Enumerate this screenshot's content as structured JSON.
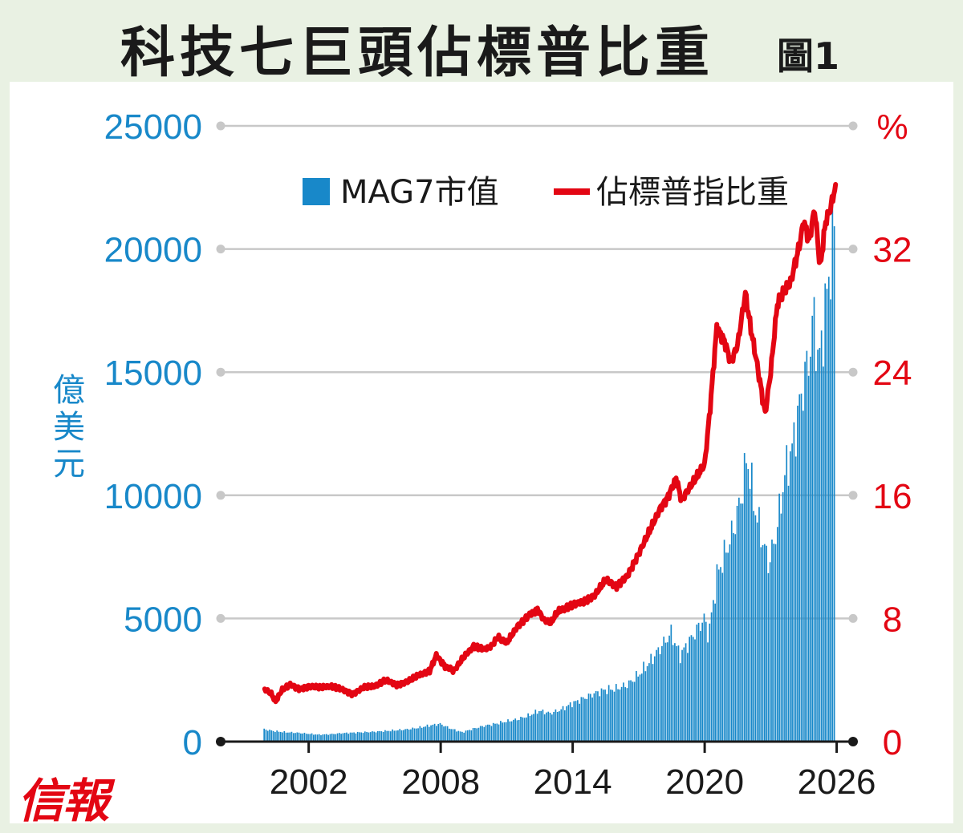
{
  "title": "科技七巨頭佔標普比重",
  "figure_label": "圖1",
  "logo_text": "信報",
  "colors": {
    "bar": "#1888c9",
    "line": "#e30613",
    "grid": "#c8c8c8",
    "axis_left": "#1888c9",
    "axis_right": "#e30613",
    "background": "#e9f1e3"
  },
  "chart_data": {
    "type": "bar+line",
    "title": "科技七巨頭佔標普比重",
    "xlabel": "",
    "ylabel_left": "億美元",
    "ylabel_right": "%",
    "x_range": [
      1998,
      2027
    ],
    "left_axis": {
      "ylim": [
        0,
        25000
      ],
      "ticks": [
        "0",
        "5000",
        "10000",
        "15000",
        "20000",
        "25000"
      ]
    },
    "right_axis": {
      "ylim": [
        0,
        40
      ],
      "ticks": [
        "0",
        "8",
        "16",
        "24",
        "32",
        "%"
      ]
    },
    "x_ticks": [
      "2002",
      "2008",
      "2014",
      "2020",
      "2026"
    ],
    "grid": true,
    "legend": {
      "position": "top-center",
      "entries": [
        "MAG7市值",
        "佔標普指比重"
      ]
    },
    "series": [
      {
        "name": "MAG7市值",
        "type": "bar",
        "axis": "left",
        "points": [
          [
            2000.0,
            500
          ],
          [
            2000.5,
            420
          ],
          [
            2001.0,
            380
          ],
          [
            2001.5,
            360
          ],
          [
            2002.0,
            320
          ],
          [
            2002.5,
            280
          ],
          [
            2003.0,
            300
          ],
          [
            2003.5,
            340
          ],
          [
            2004.0,
            360
          ],
          [
            2004.5,
            380
          ],
          [
            2005.0,
            400
          ],
          [
            2005.5,
            430
          ],
          [
            2006.0,
            460
          ],
          [
            2006.5,
            500
          ],
          [
            2007.0,
            560
          ],
          [
            2007.5,
            650
          ],
          [
            2008.0,
            720
          ],
          [
            2008.5,
            520
          ],
          [
            2009.0,
            380
          ],
          [
            2009.5,
            520
          ],
          [
            2010.0,
            640
          ],
          [
            2010.5,
            720
          ],
          [
            2011.0,
            820
          ],
          [
            2011.5,
            900
          ],
          [
            2012.0,
            1050
          ],
          [
            2012.5,
            1250
          ],
          [
            2013.0,
            1150
          ],
          [
            2013.5,
            1300
          ],
          [
            2014.0,
            1550
          ],
          [
            2014.5,
            1750
          ],
          [
            2015.0,
            1950
          ],
          [
            2015.5,
            2100
          ],
          [
            2016.0,
            2150
          ],
          [
            2016.5,
            2300
          ],
          [
            2017.0,
            2700
          ],
          [
            2017.5,
            3200
          ],
          [
            2018.0,
            3800
          ],
          [
            2018.5,
            4400
          ],
          [
            2018.9,
            3500
          ],
          [
            2019.5,
            4300
          ],
          [
            2020.0,
            5000
          ],
          [
            2020.2,
            4300
          ],
          [
            2020.6,
            6800
          ],
          [
            2020.9,
            7500
          ],
          [
            2021.3,
            8500
          ],
          [
            2021.7,
            10000
          ],
          [
            2021.95,
            11600
          ],
          [
            2022.3,
            9500
          ],
          [
            2022.7,
            8000
          ],
          [
            2022.95,
            7200
          ],
          [
            2023.3,
            8600
          ],
          [
            2023.7,
            11000
          ],
          [
            2024.0,
            11900
          ],
          [
            2024.4,
            14000
          ],
          [
            2024.8,
            15800
          ],
          [
            2025.0,
            17300
          ],
          [
            2025.2,
            15200
          ],
          [
            2025.5,
            17500
          ],
          [
            2025.75,
            19500
          ],
          [
            2025.95,
            21200
          ]
        ]
      },
      {
        "name": "佔標普指比重",
        "type": "line",
        "axis": "right",
        "points": [
          [
            2000.0,
            3.4
          ],
          [
            2000.3,
            3.1
          ],
          [
            2000.5,
            2.6
          ],
          [
            2000.8,
            3.4
          ],
          [
            2001.2,
            3.7
          ],
          [
            2001.6,
            3.4
          ],
          [
            2002.0,
            3.6
          ],
          [
            2002.5,
            3.5
          ],
          [
            2003.0,
            3.6
          ],
          [
            2003.5,
            3.4
          ],
          [
            2004.0,
            3.1
          ],
          [
            2004.5,
            3.5
          ],
          [
            2005.0,
            3.6
          ],
          [
            2005.5,
            4.0
          ],
          [
            2006.0,
            3.7
          ],
          [
            2006.5,
            3.9
          ],
          [
            2007.0,
            4.3
          ],
          [
            2007.5,
            4.6
          ],
          [
            2007.8,
            5.6
          ],
          [
            2008.2,
            4.9
          ],
          [
            2008.6,
            4.6
          ],
          [
            2009.0,
            5.4
          ],
          [
            2009.5,
            6.2
          ],
          [
            2010.0,
            6.0
          ],
          [
            2010.3,
            6.2
          ],
          [
            2010.6,
            6.8
          ],
          [
            2011.0,
            6.4
          ],
          [
            2011.5,
            7.5
          ],
          [
            2012.0,
            8.2
          ],
          [
            2012.4,
            8.6
          ],
          [
            2012.7,
            7.9
          ],
          [
            2013.0,
            7.7
          ],
          [
            2013.3,
            8.4
          ],
          [
            2013.7,
            8.7
          ],
          [
            2014.0,
            8.9
          ],
          [
            2014.5,
            9.1
          ],
          [
            2015.0,
            9.5
          ],
          [
            2015.5,
            10.5
          ],
          [
            2016.0,
            10.1
          ],
          [
            2016.5,
            10.8
          ],
          [
            2017.0,
            12.2
          ],
          [
            2017.5,
            13.7
          ],
          [
            2018.0,
            15.2
          ],
          [
            2018.3,
            15.8
          ],
          [
            2018.7,
            17.1
          ],
          [
            2018.95,
            15.7
          ],
          [
            2019.5,
            16.9
          ],
          [
            2020.0,
            18.0
          ],
          [
            2020.25,
            21.7
          ],
          [
            2020.55,
            26.9
          ],
          [
            2020.9,
            26.0
          ],
          [
            2021.2,
            24.6
          ],
          [
            2021.5,
            25.8
          ],
          [
            2021.85,
            29.1
          ],
          [
            2022.1,
            26.8
          ],
          [
            2022.35,
            24.8
          ],
          [
            2022.75,
            21.3
          ],
          [
            2023.0,
            24.0
          ],
          [
            2023.3,
            28.4
          ],
          [
            2023.6,
            29.2
          ],
          [
            2023.9,
            29.8
          ],
          [
            2024.3,
            32.2
          ],
          [
            2024.5,
            33.8
          ],
          [
            2024.75,
            32.6
          ],
          [
            2025.0,
            34.6
          ],
          [
            2025.25,
            30.8
          ],
          [
            2025.5,
            33.8
          ],
          [
            2025.75,
            34.8
          ],
          [
            2025.95,
            36.2
          ]
        ]
      }
    ]
  }
}
